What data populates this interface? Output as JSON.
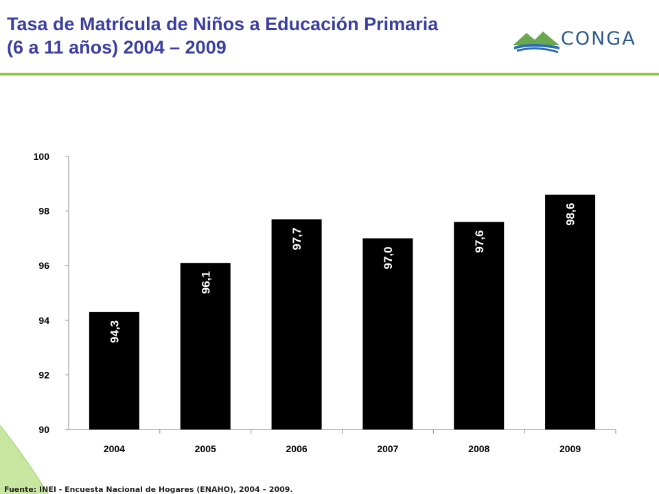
{
  "header": {
    "title_line1": "Tasa de Matrícula de Niños a Educación Primaria",
    "title_line2": "(6 a 11 años) 2004 – 2009",
    "logo_text": "CONGA",
    "accent_color": "#8dc63f",
    "title_color": "#3b3fa0"
  },
  "footer": {
    "source": "Fuente: INEI - Encuesta Nacional de Hogares (ENAHO), 2004 – 2009."
  },
  "chart_data": {
    "type": "bar",
    "categories": [
      "2004",
      "2005",
      "2006",
      "2007",
      "2008",
      "2009"
    ],
    "values": [
      94.3,
      96.1,
      97.7,
      97.0,
      97.6,
      98.6
    ],
    "data_labels": [
      "94,3",
      "96,1",
      "97,7",
      "97,0",
      "97,6",
      "98,6"
    ],
    "ylim": [
      90,
      100
    ],
    "yticks": [
      "90",
      "92",
      "94",
      "96",
      "98",
      "100"
    ],
    "ytick_values": [
      90,
      92,
      94,
      96,
      98,
      100
    ],
    "bar_color": "#000000",
    "label_color": "#ffffff",
    "grid": false
  }
}
